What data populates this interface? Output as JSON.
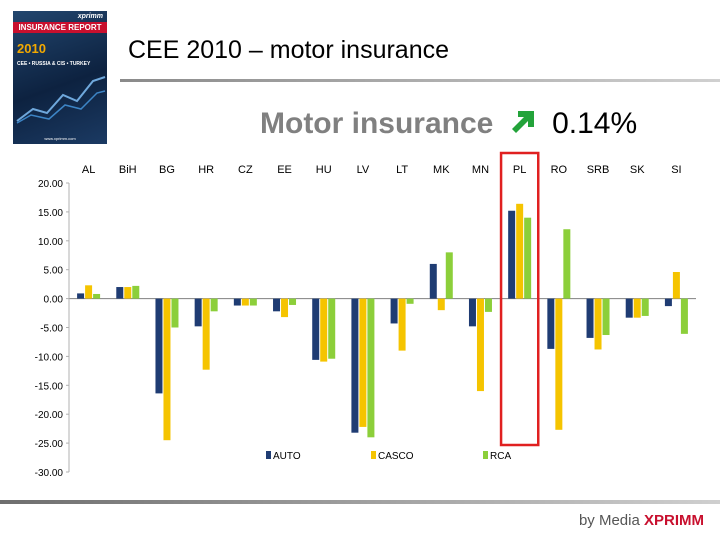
{
  "cover": {
    "brand": "xprimm",
    "report": "INSURANCE REPORT",
    "year": "2010",
    "region": "CEE • RUSSIA & CIS • TURKEY",
    "url": "www.xprimm.com"
  },
  "title": "CEE 2010 – motor insurance",
  "subtitle": {
    "label": "Motor insurance",
    "value": "0.14%"
  },
  "footer": {
    "prefix": "by Media",
    "brand": "XPRIMM"
  },
  "colors": {
    "auto": "#1f3c73",
    "casco": "#f5c400",
    "rca": "#8ccf3a",
    "highlight": "#e02020",
    "arrow": "#23a33a"
  },
  "chart_data": {
    "type": "bar",
    "categories": [
      "AL",
      "BiH",
      "BG",
      "HR",
      "CZ",
      "EE",
      "HU",
      "LV",
      "LT",
      "MK",
      "MN",
      "PL",
      "RO",
      "SRB",
      "SK",
      "SI"
    ],
    "series": [
      {
        "name": "AUTO",
        "values": [
          0.9,
          2.0,
          -16.4,
          -4.8,
          -1.2,
          -2.2,
          -10.6,
          -23.2,
          -4.3,
          6.0,
          -4.8,
          15.2,
          -8.7,
          -6.8,
          -3.3,
          -1.3
        ]
      },
      {
        "name": "CASCO",
        "values": [
          2.3,
          2.0,
          -24.5,
          -12.3,
          -1.2,
          -3.2,
          -10.9,
          -22.2,
          -9.0,
          -2.0,
          -16.0,
          16.4,
          -22.7,
          -8.8,
          -3.3,
          4.6
        ]
      },
      {
        "name": "RCA",
        "values": [
          0.8,
          2.2,
          -5.0,
          -2.2,
          -1.2,
          -1.1,
          -10.4,
          -24.0,
          -0.9,
          8.0,
          -2.3,
          14.0,
          12.0,
          -6.3,
          -3.0,
          -6.1
        ]
      }
    ],
    "y_ticks": [
      "20.00",
      "15.00",
      "10.00",
      "5.00",
      "0.00",
      "-5.00",
      "-10.00",
      "-15.00",
      "-20.00",
      "-25.00",
      "-30.00"
    ],
    "ylim": [
      -30,
      20
    ],
    "highlight_category": "PL",
    "legend_placement": "bottom-center"
  }
}
